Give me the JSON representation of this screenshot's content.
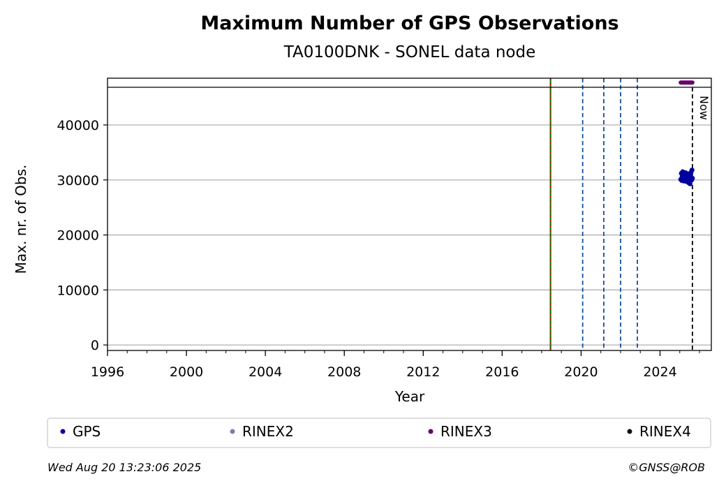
{
  "title": "Maximum Number of GPS Observations",
  "subtitle": "TA0100DNK - SONEL data node",
  "footer": {
    "timestamp": "Wed Aug 20 13:23:06 2025",
    "copyright": "©GNSS@ROB"
  },
  "now_label": "Now",
  "colors": {
    "GPS": "#0000a0",
    "RINEX2": "#7b7bb5",
    "RINEX3": "#6a006a",
    "RINEX4": "#200020",
    "grid": "#b0b0b0",
    "green_event": "#008000",
    "red_event": "#d00000",
    "blue_event": "#1050a0"
  },
  "chart_data": {
    "type": "scatter",
    "title": "Maximum Number of GPS Observations",
    "subtitle": "TA0100DNK - SONEL data node",
    "xlabel": "Year",
    "ylabel": "Max. nr. of Obs.",
    "xlim": [
      1996,
      2026.6
    ],
    "ylim": [
      -1000,
      48500
    ],
    "x_ticks": [
      1996,
      2000,
      2004,
      2008,
      2012,
      2016,
      2020,
      2024
    ],
    "y_ticks": [
      0,
      10000,
      20000,
      30000,
      40000
    ],
    "grid": "horizontal",
    "legend_placement": "below",
    "legend": [
      "GPS",
      "RINEX2",
      "RINEX3",
      "RINEX4"
    ],
    "series": [
      {
        "name": "GPS",
        "points": [
          [
            2025.05,
            30100
          ],
          [
            2025.08,
            31200
          ],
          [
            2025.1,
            29900
          ],
          [
            2025.12,
            30600
          ],
          [
            2025.15,
            31500
          ],
          [
            2025.18,
            30300
          ],
          [
            2025.2,
            29800
          ],
          [
            2025.22,
            31000
          ],
          [
            2025.25,
            30500
          ],
          [
            2025.28,
            30000
          ],
          [
            2025.3,
            31300
          ],
          [
            2025.33,
            30200
          ],
          [
            2025.35,
            29700
          ],
          [
            2025.38,
            30800
          ],
          [
            2025.4,
            30400
          ],
          [
            2025.42,
            31100
          ],
          [
            2025.45,
            29500
          ],
          [
            2025.48,
            30100
          ],
          [
            2025.5,
            30700
          ],
          [
            2025.52,
            29300
          ],
          [
            2025.55,
            30900
          ],
          [
            2025.57,
            31400
          ],
          [
            2025.6,
            30000
          ],
          [
            2025.62,
            31800
          ],
          [
            2025.64,
            30300
          ]
        ]
      },
      {
        "name": "RINEX3",
        "x_range": [
          2025.05,
          2025.64
        ],
        "y": 47700
      }
    ],
    "vertical_events": [
      {
        "type": "equipment",
        "x": 2018.45,
        "style": "solid-green-red"
      },
      {
        "type": "dashed",
        "x": 2020.08
      },
      {
        "type": "dashed",
        "x": 2021.15
      },
      {
        "type": "dashed",
        "x": 2022.0
      },
      {
        "type": "dashed",
        "x": 2022.85
      }
    ],
    "now_x": 2025.64
  }
}
